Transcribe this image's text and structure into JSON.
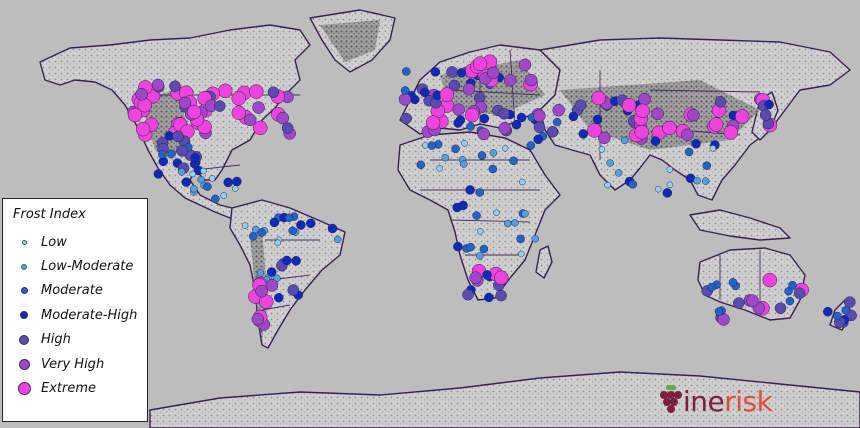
{
  "legend": {
    "title": "Frost Index",
    "items": [
      {
        "label": "Low",
        "color": "#8fd3ef",
        "size": 5
      },
      {
        "label": "Low-Moderate",
        "color": "#4fa3de",
        "size": 6
      },
      {
        "label": "Moderate",
        "color": "#1f64c8",
        "size": 7
      },
      {
        "label": "Moderate-High",
        "color": "#0f2ab8",
        "size": 8
      },
      {
        "label": "High",
        "color": "#5a4bb0",
        "size": 10
      },
      {
        "label": "Very High",
        "color": "#a046c8",
        "size": 11
      },
      {
        "label": "Extreme",
        "color": "#ee44dd",
        "size": 13
      }
    ]
  },
  "brand": {
    "name": "winerisk",
    "prefix_color": "#7a1f3d",
    "suffix_color": "#e04a3a",
    "prefix": "ine",
    "suffix": "risk"
  },
  "colors": {
    "ocean": "#bdbdbd",
    "land": "#c9c9c9",
    "border": "#3c1f52"
  }
}
